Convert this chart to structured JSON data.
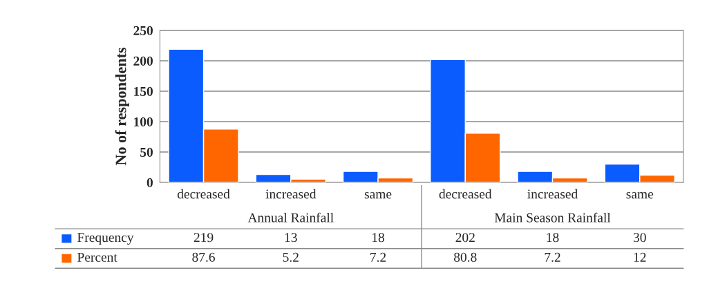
{
  "chart_data": {
    "type": "bar",
    "ylabel": "No of respondents",
    "categories": [
      "decreased",
      "increased",
      "same",
      "decreased",
      "increased",
      "same"
    ],
    "series": [
      {
        "name": "Frequency",
        "color": "#0a5cff",
        "values": [
          219,
          13,
          18,
          202,
          18,
          30
        ]
      },
      {
        "name": "Percent",
        "color": "#ff6600",
        "values": [
          87.6,
          5.2,
          7.2,
          80.8,
          7.2,
          12
        ]
      }
    ],
    "annotations": [
      "Annual Rainfall",
      "Main Season Rainfall"
    ],
    "ylim": [
      0,
      250
    ],
    "yticks": [
      0,
      50,
      100,
      150,
      200,
      250
    ],
    "grid": "y",
    "legend": "bottom",
    "data_labels": true
  }
}
